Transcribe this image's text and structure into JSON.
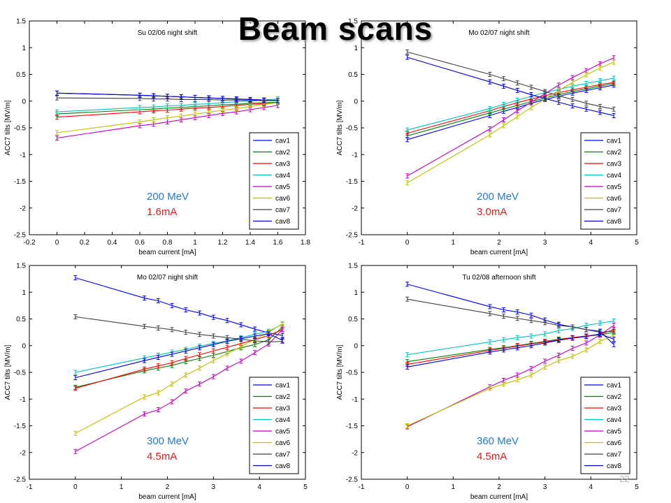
{
  "slide": {
    "title": "Beam scans",
    "page_number": "22"
  },
  "chart_data": [
    {
      "type": "line",
      "title": "Su 02/06  night shift",
      "xlabel": "beam current   [mA]",
      "ylabel": "ACC7 tilts   [MV/m]",
      "xlim": [
        -0.2,
        1.8
      ],
      "ylim": [
        -2.5,
        1.5
      ],
      "xticks": [
        -0.2,
        0,
        0.2,
        0.4,
        0.6,
        0.8,
        1,
        1.2,
        1.4,
        1.6,
        1.8
      ],
      "yticks": [
        -2.5,
        -2,
        -1.5,
        -1,
        -0.5,
        0,
        0.5,
        1,
        1.5
      ],
      "annotations": [
        {
          "text": "200 MeV",
          "color": "#1f78d1"
        },
        {
          "text": "1.6mA",
          "color": "#e02020"
        }
      ],
      "legend_position": "lower-right",
      "x": [
        0,
        0.6,
        0.7,
        0.8,
        0.9,
        1.0,
        1.1,
        1.2,
        1.3,
        1.4,
        1.5,
        1.6
      ],
      "series": [
        {
          "name": "cav1",
          "color": "#0000ff",
          "values": [
            0.15,
            0.11,
            0.1,
            0.09,
            0.08,
            0.07,
            0.06,
            0.05,
            0.04,
            0.03,
            0.02,
            0.01
          ]
        },
        {
          "name": "cav2",
          "color": "#008000",
          "values": [
            -0.24,
            -0.16,
            -0.15,
            -0.13,
            -0.12,
            -0.1,
            -0.09,
            -0.07,
            -0.06,
            -0.04,
            -0.03,
            -0.02
          ]
        },
        {
          "name": "cav3",
          "color": "#ff0000",
          "values": [
            -0.3,
            -0.2,
            -0.18,
            -0.17,
            -0.15,
            -0.13,
            -0.12,
            -0.1,
            -0.08,
            -0.06,
            -0.05,
            -0.03
          ]
        },
        {
          "name": "cav4",
          "color": "#00bfbf",
          "values": [
            -0.2,
            -0.12,
            -0.11,
            -0.09,
            -0.08,
            -0.06,
            -0.05,
            -0.03,
            -0.01,
            0.0,
            0.02,
            0.04
          ]
        },
        {
          "name": "cav5",
          "color": "#bf00bf",
          "values": [
            -0.69,
            -0.46,
            -0.43,
            -0.39,
            -0.35,
            -0.31,
            -0.27,
            -0.23,
            -0.2,
            -0.16,
            -0.12,
            -0.08
          ]
        },
        {
          "name": "cav6",
          "color": "#bfbf00",
          "values": [
            -0.59,
            -0.39,
            -0.35,
            -0.31,
            -0.28,
            -0.24,
            -0.21,
            -0.17,
            -0.14,
            -0.1,
            -0.06,
            -0.03
          ]
        },
        {
          "name": "cav7",
          "color": "#404040",
          "values": [
            0.06,
            0.05,
            0.04,
            0.04,
            0.03,
            0.03,
            0.03,
            0.02,
            0.02,
            0.01,
            0.01,
            0.01
          ]
        },
        {
          "name": "cav8",
          "color": "#0000cc",
          "values": [
            0.15,
            0.11,
            0.1,
            0.09,
            0.08,
            0.07,
            0.06,
            0.05,
            0.04,
            0.03,
            0.02,
            0.01
          ]
        }
      ]
    },
    {
      "type": "line",
      "title": "Mo 02/07  night shift",
      "xlabel": "beam current   [mA]",
      "ylabel": "ACC7 tilts   [MV/m]",
      "xlim": [
        -1,
        5
      ],
      "ylim": [
        -2.5,
        1.5
      ],
      "xticks": [
        -1,
        0,
        1,
        2,
        3,
        4,
        5
      ],
      "yticks": [
        -2.5,
        -2,
        -1.5,
        -1,
        -0.5,
        0,
        0.5,
        1,
        1.5
      ],
      "annotations": [
        {
          "text": "200 MeV",
          "color": "#1f78d1"
        },
        {
          "text": "3.0mA",
          "color": "#e02020"
        }
      ],
      "legend_position": "lower-right",
      "x": [
        0,
        1.8,
        2.1,
        2.4,
        2.7,
        3.0,
        3.3,
        3.6,
        3.9,
        4.2,
        4.5
      ],
      "series": [
        {
          "name": "cav1",
          "color": "#0000ff",
          "values": [
            -0.72,
            -0.27,
            -0.19,
            -0.12,
            -0.04,
            0.03,
            0.09,
            0.15,
            0.2,
            0.25,
            0.3
          ]
        },
        {
          "name": "cav2",
          "color": "#008000",
          "values": [
            -0.65,
            -0.22,
            -0.15,
            -0.08,
            -0.01,
            0.06,
            0.12,
            0.18,
            0.23,
            0.28,
            0.33
          ]
        },
        {
          "name": "cav3",
          "color": "#ff0000",
          "values": [
            -0.6,
            -0.18,
            -0.1,
            -0.03,
            0.04,
            0.1,
            0.16,
            0.21,
            0.26,
            0.31,
            0.35
          ]
        },
        {
          "name": "cav4",
          "color": "#00bfbf",
          "values": [
            -0.54,
            -0.14,
            -0.06,
            0.02,
            0.09,
            0.16,
            0.22,
            0.28,
            0.33,
            0.38,
            0.43
          ]
        },
        {
          "name": "cav5",
          "color": "#bf00bf",
          "values": [
            -1.4,
            -0.52,
            -0.35,
            -0.18,
            -0.02,
            0.14,
            0.3,
            0.44,
            0.57,
            0.7,
            0.81
          ]
        },
        {
          "name": "cav6",
          "color": "#bfbf00",
          "values": [
            -1.53,
            -0.63,
            -0.46,
            -0.29,
            -0.12,
            0.04,
            0.2,
            0.35,
            0.49,
            0.62,
            0.73
          ]
        },
        {
          "name": "cav7",
          "color": "#404040",
          "values": [
            0.92,
            0.5,
            0.42,
            0.34,
            0.26,
            0.18,
            0.1,
            0.03,
            -0.04,
            -0.1,
            -0.15
          ]
        },
        {
          "name": "cav8",
          "color": "#0000cc",
          "values": [
            0.82,
            0.36,
            0.28,
            0.2,
            0.12,
            0.05,
            -0.02,
            -0.09,
            -0.15,
            -0.21,
            -0.27
          ]
        }
      ]
    },
    {
      "type": "line",
      "title": "Mo 02/07  night shift",
      "xlabel": "beam current   [mA]",
      "ylabel": "ACC7 tilts   [MV/m]",
      "xlim": [
        -1,
        5
      ],
      "ylim": [
        -2.5,
        1.5
      ],
      "xticks": [
        -1,
        0,
        1,
        2,
        3,
        4,
        5
      ],
      "yticks": [
        -2.5,
        -2,
        -1.5,
        -1,
        -0.5,
        0,
        0.5,
        1,
        1.5
      ],
      "annotations": [
        {
          "text": "300 MeV",
          "color": "#1f78d1"
        },
        {
          "text": "4.5mA",
          "color": "#e02020"
        }
      ],
      "legend_position": "lower-right",
      "x": [
        0,
        1.5,
        1.8,
        2.1,
        2.4,
        2.7,
        3.0,
        3.3,
        3.6,
        3.9,
        4.2,
        4.5
      ],
      "series": [
        {
          "name": "cav1",
          "color": "#0000ff",
          "values": [
            1.27,
            0.89,
            0.84,
            0.75,
            0.67,
            0.61,
            0.53,
            0.47,
            0.39,
            0.31,
            0.24,
            0.19
          ]
        },
        {
          "name": "cav2",
          "color": "#008000",
          "values": [
            -0.78,
            -0.47,
            -0.42,
            -0.37,
            -0.3,
            -0.24,
            -0.18,
            -0.11,
            -0.04,
            0.02,
            0.11,
            0.35
          ]
        },
        {
          "name": "cav3",
          "color": "#ff0000",
          "values": [
            -0.8,
            -0.44,
            -0.38,
            -0.32,
            -0.24,
            -0.17,
            -0.1,
            -0.03,
            0.04,
            0.11,
            0.19,
            0.3
          ]
        },
        {
          "name": "cav4",
          "color": "#00bfbf",
          "values": [
            -0.5,
            -0.23,
            -0.18,
            -0.12,
            -0.07,
            -0.01,
            0.04,
            0.09,
            0.15,
            0.21,
            0.27,
            0.4
          ]
        },
        {
          "name": "cav5",
          "color": "#bf00bf",
          "values": [
            -1.98,
            -1.28,
            -1.2,
            -1.05,
            -0.85,
            -0.72,
            -0.58,
            -0.42,
            -0.29,
            -0.13,
            0.03,
            0.3
          ]
        },
        {
          "name": "cav6",
          "color": "#bfbf00",
          "values": [
            -1.64,
            -0.96,
            -0.88,
            -0.72,
            -0.55,
            -0.42,
            -0.28,
            -0.15,
            -0.02,
            0.12,
            0.25,
            0.41
          ]
        },
        {
          "name": "cav7",
          "color": "#404040",
          "values": [
            0.54,
            0.36,
            0.33,
            0.3,
            0.25,
            0.21,
            0.18,
            0.15,
            0.12,
            0.09,
            0.07,
            0.08
          ]
        },
        {
          "name": "cav8",
          "color": "#0000cc",
          "values": [
            -0.6,
            -0.28,
            -0.22,
            -0.16,
            -0.1,
            -0.04,
            0.02,
            0.08,
            0.13,
            0.18,
            0.22,
            0.1
          ]
        }
      ]
    },
    {
      "type": "line",
      "title": "Tu 02/08  afternoon shift",
      "xlabel": "beam current   [mA]",
      "ylabel": "ACC7 tilts   [MV/m]",
      "xlim": [
        -1,
        5
      ],
      "ylim": [
        -2.5,
        1.5
      ],
      "xticks": [
        -1,
        0,
        1,
        2,
        3,
        4,
        5
      ],
      "yticks": [
        -2.5,
        -2,
        -1.5,
        -1,
        -0.5,
        0,
        0.5,
        1,
        1.5
      ],
      "annotations": [
        {
          "text": "360 MeV",
          "color": "#1f78d1"
        },
        {
          "text": "4.5mA",
          "color": "#e02020"
        }
      ],
      "legend_position": "lower-right",
      "x": [
        0,
        1.8,
        2.1,
        2.4,
        2.7,
        3.0,
        3.3,
        3.6,
        3.9,
        4.2,
        4.5
      ],
      "series": [
        {
          "name": "cav1",
          "color": "#0000ff",
          "values": [
            1.15,
            0.73,
            0.67,
            0.63,
            0.57,
            0.48,
            0.4,
            0.35,
            0.3,
            0.27,
            0.02
          ]
        },
        {
          "name": "cav2",
          "color": "#008000",
          "values": [
            -0.3,
            -0.07,
            -0.04,
            0.0,
            0.04,
            0.08,
            0.12,
            0.15,
            0.18,
            0.2,
            0.25
          ]
        },
        {
          "name": "cav3",
          "color": "#ff0000",
          "values": [
            -0.35,
            -0.09,
            -0.05,
            -0.01,
            0.03,
            0.07,
            0.11,
            0.15,
            0.18,
            0.21,
            0.3
          ]
        },
        {
          "name": "cav4",
          "color": "#00bfbf",
          "values": [
            -0.17,
            0.07,
            0.11,
            0.15,
            0.18,
            0.22,
            0.28,
            0.32,
            0.38,
            0.42,
            0.46
          ]
        },
        {
          "name": "cav5",
          "color": "#bf00bf",
          "values": [
            -1.52,
            -0.77,
            -0.65,
            -0.55,
            -0.43,
            -0.29,
            -0.18,
            -0.05,
            0.05,
            0.2,
            0.38
          ]
        },
        {
          "name": "cav6",
          "color": "#bfbf00",
          "values": [
            -1.5,
            -0.8,
            -0.72,
            -0.64,
            -0.55,
            -0.4,
            -0.28,
            -0.2,
            -0.08,
            0.08,
            0.2
          ]
        },
        {
          "name": "cav7",
          "color": "#404040",
          "values": [
            0.87,
            0.6,
            0.55,
            0.51,
            0.47,
            0.43,
            0.38,
            0.35,
            0.3,
            0.25,
            0.27
          ]
        },
        {
          "name": "cav8",
          "color": "#0000cc",
          "values": [
            -0.4,
            -0.12,
            -0.08,
            -0.04,
            0.0,
            0.05,
            0.1,
            0.14,
            0.17,
            0.22,
            0.12
          ]
        }
      ]
    }
  ]
}
